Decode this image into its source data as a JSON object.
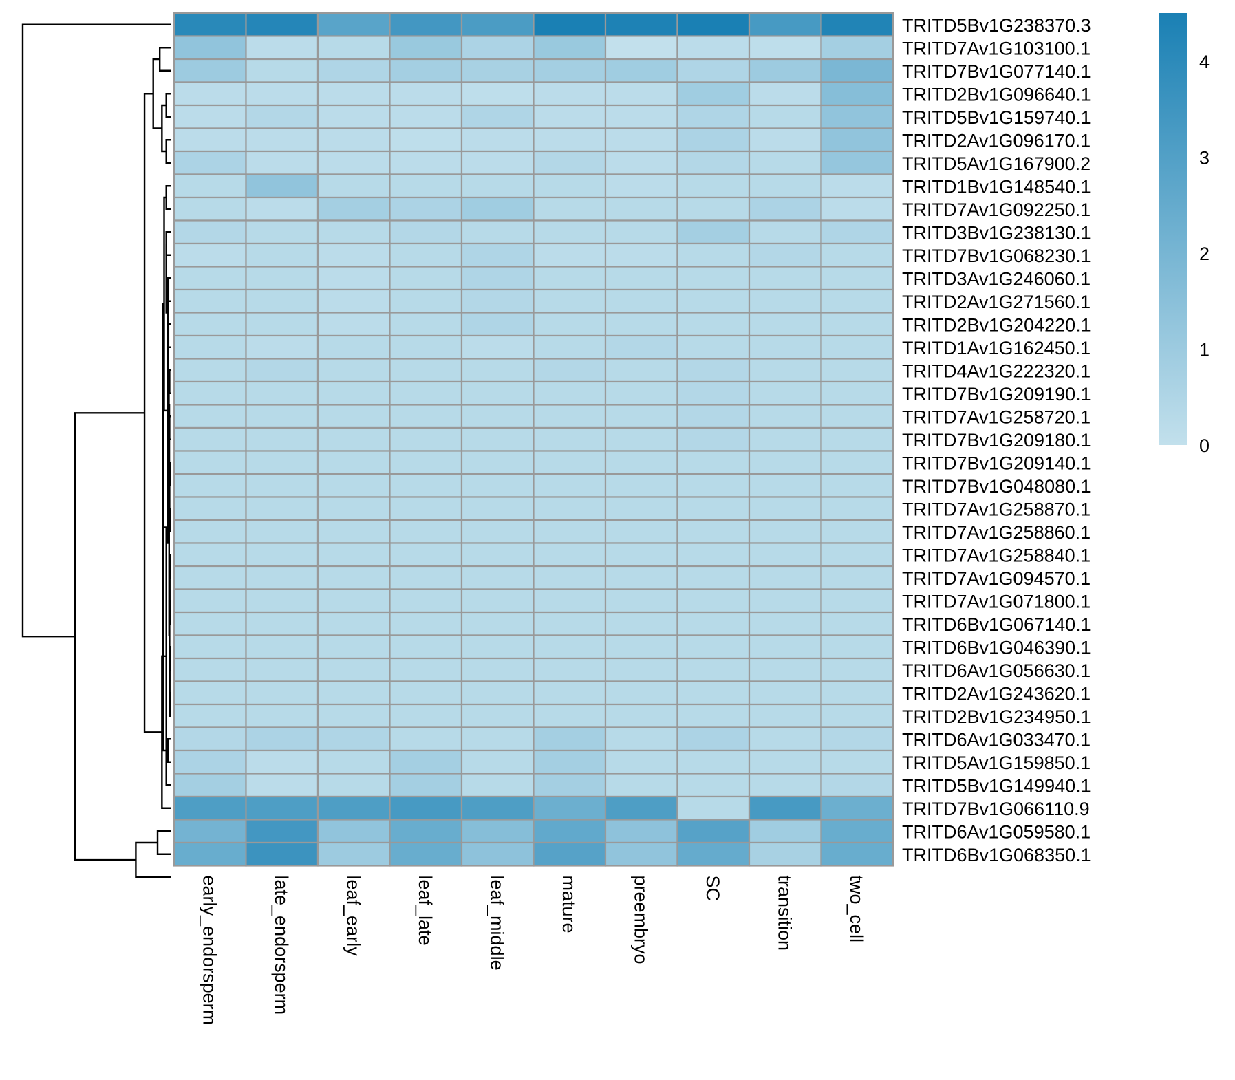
{
  "chart_data": {
    "type": "heatmap",
    "title": "",
    "xlabel": "",
    "ylabel": "",
    "columns": [
      "early_endorsperm",
      "late_endorsperm",
      "leaf_early",
      "leaf_late",
      "leaf_middle",
      "mature",
      "preembryo",
      "SC",
      "transition",
      "two_cell"
    ],
    "rows": [
      "TRITD5Bv1G238370.3",
      "TRITD7Av1G103100.1",
      "TRITD7Bv1G077140.1",
      "TRITD2Bv1G096640.1",
      "TRITD5Bv1G159740.1",
      "TRITD2Av1G096170.1",
      "TRITD5Av1G167900.2",
      "TRITD1Bv1G148540.1",
      "TRITD7Av1G092250.1",
      "TRITD3Bv1G238130.1",
      "TRITD7Bv1G068230.1",
      "TRITD3Av1G246060.1",
      "TRITD2Av1G271560.1",
      "TRITD2Bv1G204220.1",
      "TRITD1Av1G162450.1",
      "TRITD4Av1G222320.1",
      "TRITD7Bv1G209190.1",
      "TRITD7Av1G258720.1",
      "TRITD7Bv1G209180.1",
      "TRITD7Bv1G209140.1",
      "TRITD7Bv1G048080.1",
      "TRITD7Av1G258870.1",
      "TRITD7Av1G258860.1",
      "TRITD7Av1G258840.1",
      "TRITD7Av1G094570.1",
      "TRITD7Av1G071800.1",
      "TRITD6Bv1G067140.1",
      "TRITD6Bv1G046390.1",
      "TRITD6Av1G056630.1",
      "TRITD2Av1G243620.1",
      "TRITD2Bv1G234950.1",
      "TRITD6Av1G033470.1",
      "TRITD5Av1G159850.1",
      "TRITD5Bv1G149940.1",
      "TRITD7Bv1G066110.9",
      "TRITD6Av1G059580.1",
      "TRITD6Bv1G068350.1"
    ],
    "values": [
      [
        4.1,
        4.2,
        2.8,
        3.4,
        3.2,
        4.5,
        4.4,
        4.5,
        3.3,
        4.3
      ],
      [
        1.3,
        0.2,
        0.3,
        1.1,
        0.6,
        1.1,
        0.0,
        0.2,
        0.1,
        0.8
      ],
      [
        1.0,
        0.3,
        0.5,
        0.8,
        0.7,
        0.8,
        0.9,
        0.5,
        1.0,
        1.9
      ],
      [
        0.2,
        0.2,
        0.2,
        0.2,
        0.1,
        0.2,
        0.2,
        0.9,
        0.2,
        1.6
      ],
      [
        0.2,
        0.4,
        0.2,
        0.2,
        0.5,
        0.2,
        0.2,
        0.5,
        0.3,
        1.3
      ],
      [
        0.2,
        0.2,
        0.2,
        0.1,
        0.2,
        0.2,
        0.2,
        0.6,
        0.2,
        1.3
      ],
      [
        0.6,
        0.2,
        0.2,
        0.2,
        0.2,
        0.4,
        0.2,
        0.4,
        0.3,
        1.2
      ],
      [
        0.3,
        1.3,
        0.3,
        0.3,
        0.3,
        0.3,
        0.2,
        0.3,
        0.3,
        0.2
      ],
      [
        0.3,
        0.2,
        0.8,
        0.6,
        0.9,
        0.3,
        0.3,
        0.3,
        0.6,
        0.2
      ],
      [
        0.4,
        0.3,
        0.3,
        0.4,
        0.3,
        0.3,
        0.3,
        0.8,
        0.3,
        0.5
      ],
      [
        0.2,
        0.3,
        0.2,
        0.3,
        0.5,
        0.2,
        0.2,
        0.3,
        0.4,
        0.3
      ],
      [
        0.3,
        0.3,
        0.2,
        0.3,
        0.5,
        0.3,
        0.3,
        0.3,
        0.3,
        0.3
      ],
      [
        0.3,
        0.3,
        0.2,
        0.3,
        0.4,
        0.3,
        0.3,
        0.3,
        0.3,
        0.3
      ],
      [
        0.3,
        0.3,
        0.2,
        0.3,
        0.5,
        0.3,
        0.3,
        0.3,
        0.3,
        0.3
      ],
      [
        0.3,
        0.2,
        0.3,
        0.3,
        0.2,
        0.3,
        0.4,
        0.3,
        0.3,
        0.3
      ],
      [
        0.3,
        0.4,
        0.3,
        0.3,
        0.3,
        0.4,
        0.3,
        0.4,
        0.3,
        0.3
      ],
      [
        0.3,
        0.3,
        0.3,
        0.3,
        0.3,
        0.3,
        0.3,
        0.4,
        0.3,
        0.3
      ],
      [
        0.3,
        0.3,
        0.3,
        0.3,
        0.3,
        0.3,
        0.3,
        0.4,
        0.3,
        0.3
      ],
      [
        0.3,
        0.3,
        0.3,
        0.3,
        0.3,
        0.3,
        0.3,
        0.4,
        0.3,
        0.3
      ],
      [
        0.3,
        0.3,
        0.3,
        0.3,
        0.3,
        0.3,
        0.3,
        0.3,
        0.3,
        0.3
      ],
      [
        0.3,
        0.3,
        0.3,
        0.3,
        0.3,
        0.3,
        0.3,
        0.3,
        0.3,
        0.3
      ],
      [
        0.3,
        0.3,
        0.3,
        0.3,
        0.3,
        0.3,
        0.3,
        0.3,
        0.3,
        0.3
      ],
      [
        0.3,
        0.3,
        0.3,
        0.3,
        0.3,
        0.3,
        0.3,
        0.3,
        0.3,
        0.3
      ],
      [
        0.3,
        0.3,
        0.3,
        0.3,
        0.3,
        0.3,
        0.3,
        0.3,
        0.3,
        0.3
      ],
      [
        0.3,
        0.3,
        0.3,
        0.3,
        0.3,
        0.3,
        0.3,
        0.3,
        0.3,
        0.3
      ],
      [
        0.3,
        0.3,
        0.3,
        0.3,
        0.3,
        0.3,
        0.3,
        0.3,
        0.3,
        0.3
      ],
      [
        0.3,
        0.3,
        0.3,
        0.3,
        0.3,
        0.3,
        0.3,
        0.3,
        0.3,
        0.3
      ],
      [
        0.3,
        0.3,
        0.3,
        0.3,
        0.3,
        0.3,
        0.3,
        0.3,
        0.3,
        0.3
      ],
      [
        0.3,
        0.3,
        0.3,
        0.3,
        0.3,
        0.3,
        0.3,
        0.3,
        0.3,
        0.3
      ],
      [
        0.3,
        0.3,
        0.3,
        0.3,
        0.3,
        0.3,
        0.3,
        0.3,
        0.3,
        0.3
      ],
      [
        0.3,
        0.3,
        0.3,
        0.3,
        0.3,
        0.3,
        0.3,
        0.3,
        0.3,
        0.3
      ],
      [
        0.4,
        0.6,
        0.5,
        0.3,
        0.3,
        0.8,
        0.3,
        0.6,
        0.3,
        0.4
      ],
      [
        0.6,
        0.2,
        0.3,
        0.8,
        0.3,
        0.8,
        0.3,
        0.3,
        0.3,
        0.3
      ],
      [
        0.8,
        0.2,
        0.3,
        0.8,
        0.3,
        0.8,
        0.3,
        0.3,
        0.3,
        0.4
      ],
      [
        3.1,
        3.1,
        3.1,
        3.3,
        3.1,
        2.3,
        3.1,
        0.3,
        3.3,
        2.3
      ],
      [
        2.1,
        3.4,
        1.3,
        2.4,
        1.6,
        2.6,
        1.4,
        2.9,
        0.9,
        2.4
      ],
      [
        2.4,
        3.6,
        1.0,
        2.4,
        1.4,
        2.9,
        1.3,
        2.5,
        0.7,
        2.4
      ]
    ],
    "color_scale": {
      "low": "#c2e0ec",
      "high": "#1a80b4",
      "min": 0,
      "max": 4.5
    },
    "legend": {
      "ticks": [
        0,
        1,
        2,
        3,
        4
      ],
      "placement": "top-right"
    },
    "cell_border_color": "#999999",
    "row_dendrogram": {
      "placement": "left",
      "merges": [
        [
          -2,
          -3,
          0.05
        ],
        [
          -4,
          -5,
          0.02
        ],
        [
          -6,
          -7,
          0.02
        ],
        [
          2,
          3,
          0.04
        ],
        [
          1,
          4,
          0.08
        ],
        [
          -8,
          -9,
          0.02
        ],
        [
          -10,
          -11,
          0.02
        ],
        [
          -12,
          -13,
          0.01
        ],
        [
          -14,
          -15,
          0.01
        ],
        [
          8,
          9,
          0.015
        ],
        [
          7,
          10,
          0.02
        ],
        [
          -16,
          -17,
          0.005
        ],
        [
          -18,
          -19,
          0.005
        ],
        [
          12,
          13,
          0.008
        ],
        [
          -20,
          -21,
          0.003
        ],
        [
          -22,
          -23,
          0.003
        ],
        [
          15,
          16,
          0.005
        ],
        [
          14,
          17,
          0.006
        ],
        [
          -24,
          -25,
          0.003
        ],
        [
          -26,
          -27,
          0.003
        ],
        [
          19,
          20,
          0.004
        ],
        [
          -28,
          -29,
          0.003
        ],
        [
          -30,
          -31,
          0.003
        ],
        [
          22,
          23,
          0.004
        ],
        [
          21,
          24,
          0.005
        ],
        [
          18,
          25,
          0.007
        ],
        [
          11,
          26,
          0.012
        ],
        [
          6,
          27,
          0.03
        ],
        [
          -32,
          -33,
          0.012
        ],
        [
          28,
          29,
          0.035
        ],
        [
          -34,
          30,
          0.02
        ],
        [
          -35,
          31,
          0.04
        ],
        [
          5,
          32,
          0.12
        ],
        [
          -36,
          -37,
          0.06
        ],
        [
          -38,
          34,
          0.16
        ],
        [
          33,
          35,
          0.44
        ],
        [
          -1,
          36,
          0.68
        ]
      ]
    }
  }
}
